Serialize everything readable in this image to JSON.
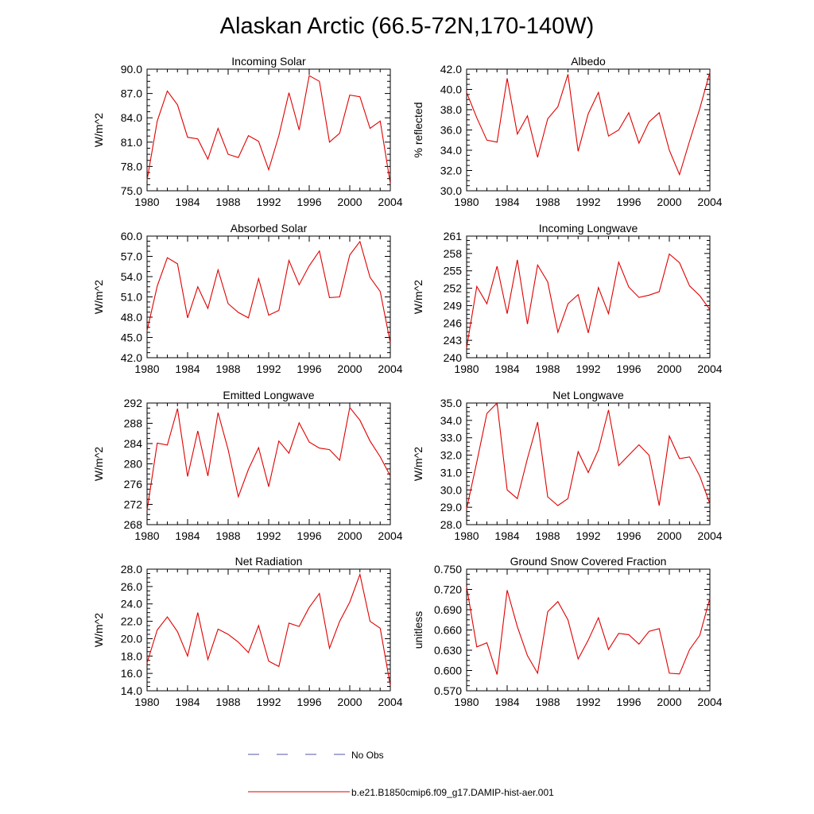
{
  "figure": {
    "title": "Alaskan Arctic (66.5-72N,170-140W)"
  },
  "legend": {
    "placement": "bottom-center",
    "entries": [
      {
        "label": "No Obs",
        "color": "#5555aa",
        "style": "dashed"
      },
      {
        "label": "b.e21.B1850cmip6.f09_g17.DAMIP-hist-aer.001",
        "color": "#e00000",
        "style": "solid"
      }
    ]
  },
  "chart_data": [
    {
      "type": "line",
      "title": "Incoming Solar",
      "ylabel": "W/m^2",
      "xlim": [
        1980,
        2004
      ],
      "ylim": [
        75.0,
        90.0
      ],
      "yticks": [
        "75.0",
        "78.0",
        "81.0",
        "84.0",
        "87.0",
        "90.0"
      ],
      "ytick_values": [
        75,
        78,
        81,
        84,
        87,
        90
      ],
      "xticks": [
        "1980",
        "1984",
        "1988",
        "1992",
        "1996",
        "2000",
        "2004"
      ],
      "series": [
        {
          "color": "#e00000",
          "x": [
            1980,
            1981,
            1982,
            1983,
            1984,
            1985,
            1986,
            1987,
            1988,
            1989,
            1990,
            1991,
            1992,
            1993,
            1994,
            1995,
            1996,
            1997,
            1998,
            1999,
            2000,
            2001,
            2002,
            2003,
            2004
          ],
          "values": [
            76.3,
            83.6,
            87.3,
            85.6,
            81.6,
            81.4,
            78.9,
            82.7,
            79.5,
            79.1,
            81.8,
            81.1,
            77.6,
            81.8,
            87.1,
            82.5,
            89.2,
            88.5,
            81.0,
            82.1,
            86.8,
            86.6,
            82.7,
            83.6,
            75.9
          ]
        }
      ]
    },
    {
      "type": "line",
      "title": "Albedo",
      "ylabel": "% reflected",
      "xlim": [
        1980,
        2004
      ],
      "ylim": [
        30.0,
        42.0
      ],
      "yticks": [
        "30.0",
        "32.0",
        "34.0",
        "36.0",
        "38.0",
        "40.0",
        "42.0"
      ],
      "ytick_values": [
        30,
        32,
        34,
        36,
        38,
        40,
        42
      ],
      "xticks": [
        "1980",
        "1984",
        "1988",
        "1992",
        "1996",
        "2000",
        "2004"
      ],
      "series": [
        {
          "color": "#e00000",
          "x": [
            1980,
            1981,
            1982,
            1983,
            1984,
            1985,
            1986,
            1987,
            1988,
            1989,
            1990,
            1991,
            1992,
            1993,
            1994,
            1995,
            1996,
            1997,
            1998,
            1999,
            2000,
            2001,
            2002,
            2003,
            2004
          ],
          "values": [
            39.7,
            37.2,
            35.0,
            34.8,
            41.1,
            35.6,
            37.4,
            33.3,
            37.1,
            38.3,
            41.5,
            33.9,
            37.6,
            39.7,
            35.4,
            36.0,
            37.7,
            34.7,
            36.8,
            37.7,
            34.0,
            31.6,
            34.9,
            38.1,
            41.7
          ]
        }
      ]
    },
    {
      "type": "line",
      "title": "Absorbed Solar",
      "ylabel": "W/m^2",
      "xlim": [
        1980,
        2004
      ],
      "ylim": [
        42.0,
        60.0
      ],
      "yticks": [
        "42.0",
        "45.0",
        "48.0",
        "51.0",
        "54.0",
        "57.0",
        "60.0"
      ],
      "ytick_values": [
        42,
        45,
        48,
        51,
        54,
        57,
        60
      ],
      "xticks": [
        "1980",
        "1984",
        "1988",
        "1992",
        "1996",
        "2000",
        "2004"
      ],
      "series": [
        {
          "color": "#e00000",
          "x": [
            1980,
            1981,
            1982,
            1983,
            1984,
            1985,
            1986,
            1987,
            1988,
            1989,
            1990,
            1991,
            1992,
            1993,
            1994,
            1995,
            1996,
            1997,
            1998,
            1999,
            2000,
            2001,
            2002,
            2003,
            2004
          ],
          "values": [
            46.0,
            52.6,
            56.8,
            55.9,
            47.9,
            52.5,
            49.3,
            55.0,
            50.0,
            48.7,
            47.9,
            53.7,
            48.3,
            49.0,
            56.4,
            52.8,
            55.6,
            57.8,
            50.9,
            51.0,
            57.2,
            59.2,
            53.9,
            51.8,
            44.2
          ]
        }
      ]
    },
    {
      "type": "line",
      "title": "Incoming Longwave",
      "ylabel": "W/m^2",
      "xlim": [
        1980,
        2004
      ],
      "ylim": [
        240,
        261
      ],
      "yticks": [
        "240",
        "243",
        "246",
        "249",
        "252",
        "255",
        "258",
        "261"
      ],
      "ytick_values": [
        240,
        243,
        246,
        249,
        252,
        255,
        258,
        261
      ],
      "xticks": [
        "1980",
        "1984",
        "1988",
        "1992",
        "1996",
        "2000",
        "2004"
      ],
      "series": [
        {
          "color": "#e00000",
          "x": [
            1980,
            1981,
            1982,
            1983,
            1984,
            1985,
            1986,
            1987,
            1988,
            1989,
            1990,
            1991,
            1992,
            1993,
            1994,
            1995,
            1996,
            1997,
            1998,
            1999,
            2000,
            2001,
            2002,
            2003,
            2004
          ],
          "values": [
            241.7,
            252.3,
            249.3,
            255.8,
            247.6,
            256.9,
            245.8,
            256.0,
            253.1,
            244.4,
            249.3,
            250.9,
            244.3,
            252.1,
            247.6,
            256.5,
            252.2,
            250.4,
            250.8,
            251.4,
            257.9,
            256.4,
            252.4,
            250.7,
            248.3
          ]
        }
      ]
    },
    {
      "type": "line",
      "title": "Emitted Longwave",
      "ylabel": "W/m^2",
      "xlim": [
        1980,
        2004
      ],
      "ylim": [
        268,
        292
      ],
      "yticks": [
        "268",
        "272",
        "276",
        "280",
        "284",
        "288",
        "292"
      ],
      "ytick_values": [
        268,
        272,
        276,
        280,
        284,
        288,
        292
      ],
      "xticks": [
        "1980",
        "1984",
        "1988",
        "1992",
        "1996",
        "2000",
        "2004"
      ],
      "series": [
        {
          "color": "#e00000",
          "x": [
            1980,
            1981,
            1982,
            1983,
            1984,
            1985,
            1986,
            1987,
            1988,
            1989,
            1990,
            1991,
            1992,
            1993,
            1994,
            1995,
            1996,
            1997,
            1998,
            1999,
            2000,
            2001,
            2002,
            2003,
            2004
          ],
          "values": [
            270.8,
            284.1,
            283.7,
            290.9,
            277.5,
            286.5,
            277.6,
            290.1,
            282.8,
            273.5,
            278.9,
            283.2,
            275.5,
            284.5,
            282.1,
            288.1,
            284.3,
            283.1,
            282.8,
            280.7,
            291.1,
            288.6,
            284.5,
            281.4,
            277.6
          ]
        }
      ]
    },
    {
      "type": "line",
      "title": "Net Longwave",
      "ylabel": "W/m^2",
      "xlim": [
        1980,
        2004
      ],
      "ylim": [
        28.0,
        35.0
      ],
      "yticks": [
        "28.0",
        "29.0",
        "30.0",
        "31.0",
        "32.0",
        "33.0",
        "34.0",
        "35.0"
      ],
      "ytick_values": [
        28,
        29,
        30,
        31,
        32,
        33,
        34,
        35
      ],
      "xticks": [
        "1980",
        "1984",
        "1988",
        "1992",
        "1996",
        "2000",
        "2004"
      ],
      "series": [
        {
          "color": "#e00000",
          "x": [
            1980,
            1981,
            1982,
            1983,
            1984,
            1985,
            1986,
            1987,
            1988,
            1989,
            1990,
            1991,
            1992,
            1993,
            1994,
            1995,
            1996,
            1997,
            1998,
            1999,
            2000,
            2001,
            2002,
            2003,
            2004
          ],
          "values": [
            28.9,
            31.6,
            34.4,
            35.0,
            30.0,
            29.5,
            31.8,
            33.9,
            29.6,
            29.1,
            29.5,
            32.2,
            31.0,
            32.3,
            34.6,
            31.4,
            32.0,
            32.6,
            32.0,
            29.1,
            33.1,
            31.8,
            31.9,
            30.8,
            29.2
          ]
        }
      ]
    },
    {
      "type": "line",
      "title": "Net Radiation",
      "ylabel": "W/m^2",
      "xlim": [
        1980,
        2004
      ],
      "ylim": [
        14.0,
        28.0
      ],
      "yticks": [
        "14.0",
        "16.0",
        "18.0",
        "20.0",
        "22.0",
        "24.0",
        "26.0",
        "28.0"
      ],
      "ytick_values": [
        14,
        16,
        18,
        20,
        22,
        24,
        26,
        28
      ],
      "xticks": [
        "1980",
        "1984",
        "1988",
        "1992",
        "1996",
        "2000",
        "2004"
      ],
      "series": [
        {
          "color": "#e00000",
          "x": [
            1980,
            1981,
            1982,
            1983,
            1984,
            1985,
            1986,
            1987,
            1988,
            1989,
            1990,
            1991,
            1992,
            1993,
            1994,
            1995,
            1996,
            1997,
            1998,
            1999,
            2000,
            2001,
            2002,
            2003,
            2004
          ],
          "values": [
            17.2,
            21.0,
            22.5,
            20.8,
            18.0,
            23.0,
            17.6,
            21.1,
            20.5,
            19.6,
            18.4,
            21.5,
            17.4,
            16.8,
            21.8,
            21.4,
            23.6,
            25.2,
            18.9,
            22.0,
            24.2,
            27.4,
            22.0,
            21.2,
            14.6
          ]
        }
      ]
    },
    {
      "type": "line",
      "title": "Ground Snow Covered Fraction",
      "ylabel": "unitless",
      "xlim": [
        1980,
        2004
      ],
      "ylim": [
        0.57,
        0.75
      ],
      "yticks": [
        "0.570",
        "0.600",
        "0.630",
        "0.660",
        "0.690",
        "0.720",
        "0.750"
      ],
      "ytick_values": [
        0.57,
        0.6,
        0.63,
        0.66,
        0.69,
        0.72,
        0.75
      ],
      "xticks": [
        "1980",
        "1984",
        "1988",
        "1992",
        "1996",
        "2000",
        "2004"
      ],
      "series": [
        {
          "color": "#e00000",
          "x": [
            1980,
            1981,
            1982,
            1983,
            1984,
            1985,
            1986,
            1987,
            1988,
            1989,
            1990,
            1991,
            1992,
            1993,
            1994,
            1995,
            1996,
            1997,
            1998,
            1999,
            2000,
            2001,
            2002,
            2003,
            2004
          ],
          "values": [
            0.724,
            0.635,
            0.641,
            0.594,
            0.719,
            0.665,
            0.622,
            0.596,
            0.687,
            0.702,
            0.675,
            0.617,
            0.645,
            0.678,
            0.631,
            0.655,
            0.653,
            0.639,
            0.658,
            0.662,
            0.596,
            0.595,
            0.631,
            0.652,
            0.707
          ]
        }
      ]
    }
  ]
}
